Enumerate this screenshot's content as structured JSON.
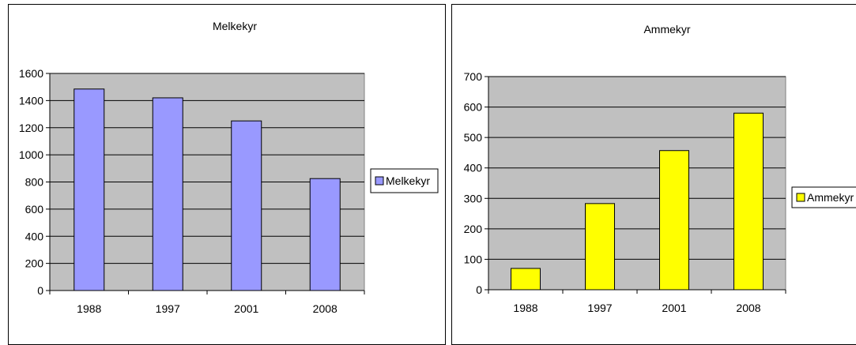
{
  "chart_data": [
    {
      "type": "bar",
      "title": "Melkekyr",
      "xlabel": "",
      "ylabel": "",
      "categories": [
        "1988",
        "1997",
        "2001",
        "2008"
      ],
      "series": [
        {
          "name": "Melkekyr",
          "values": [
            1485,
            1420,
            1250,
            825
          ],
          "color": "#9999ff"
        }
      ],
      "ylim": [
        0,
        1600
      ],
      "yticks": [
        "0",
        "200",
        "400",
        "600",
        "800",
        "1000",
        "1200",
        "1400",
        "1600"
      ],
      "grid": true,
      "plot_background": "#c0c0c0",
      "legend_position": "right"
    },
    {
      "type": "bar",
      "title": "Ammekyr",
      "xlabel": "",
      "ylabel": "",
      "categories": [
        "1988",
        "1997",
        "2001",
        "2008"
      ],
      "series": [
        {
          "name": "Ammekyr",
          "values": [
            70,
            283,
            457,
            580
          ],
          "color": "#ffff00"
        }
      ],
      "ylim": [
        0,
        700
      ],
      "yticks": [
        "0",
        "100",
        "200",
        "300",
        "400",
        "500",
        "600",
        "700"
      ],
      "grid": true,
      "plot_background": "#c0c0c0",
      "legend_position": "right"
    }
  ]
}
